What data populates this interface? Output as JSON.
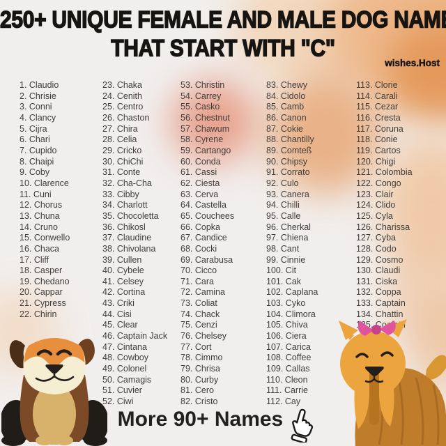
{
  "header": {
    "title_line1": "250+ UNIQUE FEMALE AND MALE DOG NAMES",
    "title_line2": "THAT START WITH \"C\"",
    "watermark": "wishes.Host"
  },
  "list": {
    "columns": [
      {
        "items": [
          "1. Claudio",
          "2. Chrisie",
          "3. Conni",
          "4. Clancy",
          "5. Cijra",
          "6. Chari",
          "7. Cupido",
          "8. Chaipi",
          "9. Coby",
          "10. Clarence",
          "11. Cuni",
          "12. Chorus",
          "13. Chuna",
          "14. Cruno",
          "15. Conwello",
          "16. Chaca",
          "17. Cliff",
          "18. Casper",
          "19. Chedano",
          "20. Cappar",
          "21. Cypress",
          "22. Chirin"
        ]
      },
      {
        "items": [
          "23. Chaka",
          "24. Cenith",
          "25. Centro",
          "26. Chaston",
          "27. Chira",
          "28. Celia",
          "29. Cricko",
          "30. ChiChi",
          "31. Conte",
          "32. Cha-Cha",
          "33. Cibby",
          "34. Charlott",
          "35. Chocoletta",
          "36. Chikosl",
          "37. Claudine",
          "38. Chivolana",
          "39. Cullen",
          "40. Cybele",
          "41. Celsey",
          "42. Cortina",
          "43. Criki",
          "44. Cisi",
          "45. Clear",
          "46. Captain Jack",
          "47. Cintana",
          "48. Cowboy",
          "49. Colonel",
          "50. Camagis",
          "51. Cuvier",
          "52. Ciwi"
        ]
      },
      {
        "items": [
          "53. Christin",
          "54. Carrey",
          "55. Casko",
          "56. Chestnut",
          "57. Chawum",
          "58. Cyrene",
          "59. Cartango",
          "60. Conda",
          "61. Cassi",
          "62. Ciesta",
          "63. Cerva",
          "64. Castella",
          "65. Couchees",
          "66. Copka",
          "67. Candice",
          "68. Cocki",
          "69. Carabusa",
          "70. Cicco",
          "71. Cara",
          "72. Camina",
          "73. Coliat",
          "74. Chack",
          "75. Cenzi",
          "76. Chelsey",
          "77. Cort",
          "78. Cimmo",
          "79. Chrisa",
          "80. Curby",
          "81. Cero",
          "82. Cristo"
        ]
      },
      {
        "items": [
          "83. Chewy",
          "84. Cidolo",
          "85. Camb",
          "86. Canon",
          "87. Cokie",
          "88. Chantilly",
          "89. Comteß",
          "90. Chipsy",
          "91. Corrato",
          "92. Culo",
          "93. Canera",
          "94. Chilli",
          "95. Calle",
          "96. Cherkal",
          "97. Chiena",
          "98. Cant",
          "99. Cinnie",
          "100. Cit",
          "101. Cak",
          "102. Caplana",
          "103. Cyko",
          "104. Climora",
          "105. Chiva",
          "106. Ciera",
          "107. Carica",
          "108. Coffee",
          "109. Callas",
          "110. Cleon",
          "111. Carrie",
          "112. Cay"
        ]
      },
      {
        "items": [
          "113. Clorie",
          "114. Carali",
          "115. Cezar",
          "116. Cresta",
          "117. Coruna",
          "118. Conie",
          "119. Cartos",
          "120. Chigi",
          "121. Colombia",
          "122. Congo",
          "123. Clair",
          "124. Clido",
          "125. Cyla",
          "126. Charissa",
          "127. Cyba",
          "128. Codo",
          "129. Cosmo",
          "130. Claudi",
          "131. Ciska",
          "132. Coppa",
          "133. Captain",
          "134. Chattin",
          "135. Confetti"
        ]
      }
    ]
  },
  "footer": {
    "more_label": "More 90+ Names",
    "cursor_icon": "hand-pointer-icon"
  },
  "decor": {
    "left_dog": "bulldog-illustration",
    "right_dog": "yorkie-illustration"
  },
  "colors": {
    "background": "#f1efee",
    "blob_peach": "#eeb98c",
    "blob_salmon": "#e79a84",
    "title_text": "#171512",
    "list_text": "#3f3d3b",
    "bow_pink": "#e0539e",
    "yorkie_gold": "#eca43e",
    "bulldog_brown": "#7c4a27"
  }
}
